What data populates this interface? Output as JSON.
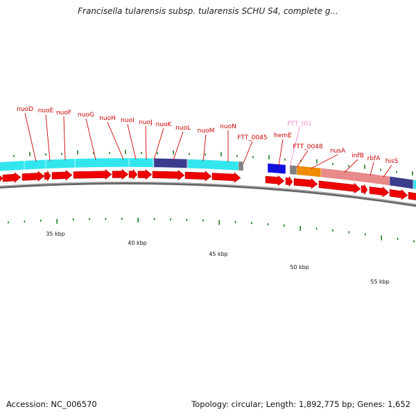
{
  "title": "Francisella tularensis subsp. tularensis SCHU S4, complete g...",
  "footer": {
    "accession": "Accession: NC_006570",
    "topology": "Topology: circular; Length: 1,892,775 bp; Genes: 1,652"
  },
  "colors": {
    "gene_arrow": "#ee0000",
    "nuo_operon_band": "#33e6ee",
    "nusA_region_band": "#e88a8a",
    "orange_feature": "#f08a00",
    "blue_feature": "#1010dd",
    "navy_feature": "#3b3d8c",
    "gray_feature": "#808080",
    "label_red": "#cc0000",
    "label_pink": "#ee88cc",
    "tick_green": "#1a7a1a",
    "backbone": "#888888"
  },
  "gene_labels": [
    {
      "text": "nuoD",
      "color": "red"
    },
    {
      "text": "nuoE",
      "color": "red"
    },
    {
      "text": "nuoF",
      "color": "red"
    },
    {
      "text": "nuoG",
      "color": "red"
    },
    {
      "text": "nuoH",
      "color": "red"
    },
    {
      "text": "nuoI",
      "color": "red"
    },
    {
      "text": "nuoJ",
      "color": "red"
    },
    {
      "text": "nuoK",
      "color": "red"
    },
    {
      "text": "nuoL",
      "color": "red"
    },
    {
      "text": "nuoM",
      "color": "red"
    },
    {
      "text": "nuoN",
      "color": "red"
    },
    {
      "text": "FTT_0045",
      "color": "red"
    },
    {
      "text": "hemE",
      "color": "red"
    },
    {
      "text": "FTT_t01",
      "color": "pink"
    },
    {
      "text": "FTT_0048",
      "color": "red"
    },
    {
      "text": "nusA",
      "color": "red"
    },
    {
      "text": "infB",
      "color": "red"
    },
    {
      "text": "rbfA",
      "color": "red"
    },
    {
      "text": "hisS",
      "color": "red"
    }
  ],
  "kbp_labels": [
    "35 kbp",
    "40 kbp",
    "45 kbp",
    "50 kbp",
    "55 kbp"
  ]
}
